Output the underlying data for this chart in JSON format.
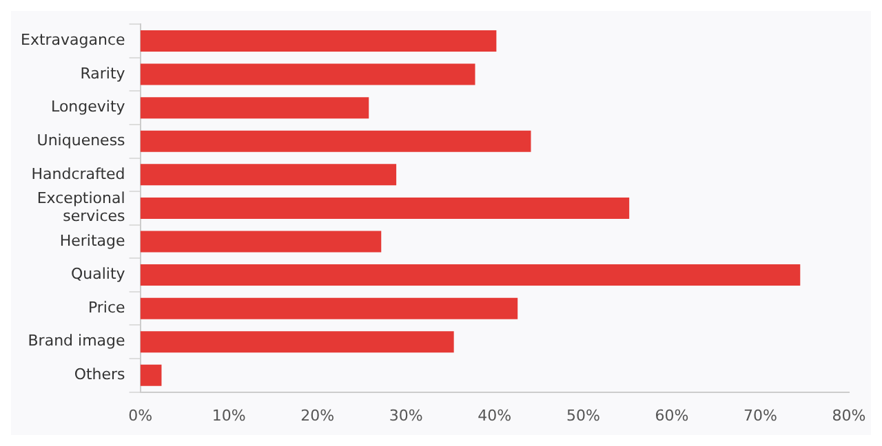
{
  "chart_data": {
    "type": "bar",
    "orientation": "horizontal",
    "categories": [
      "Extravagance",
      "Rarity",
      "Longevity",
      "Uniqueness",
      "Handcrafted",
      "Exceptional services",
      "Heritage",
      "Quality",
      "Price",
      "Brand image",
      "Others"
    ],
    "values": [
      40.2,
      37.8,
      25.8,
      44.1,
      28.9,
      55.2,
      27.2,
      74.5,
      42.6,
      35.4,
      2.4
    ],
    "color": "#e53935",
    "xlim": [
      0,
      80
    ],
    "xticks": [
      {
        "value": 0,
        "label": "0%"
      },
      {
        "value": 10,
        "label": "10%"
      },
      {
        "value": 20,
        "label": "20%"
      },
      {
        "value": 30,
        "label": "30%"
      },
      {
        "value": 40,
        "label": "40%"
      },
      {
        "value": 50,
        "label": "50%"
      },
      {
        "value": 60,
        "label": "60%"
      },
      {
        "value": 70,
        "label": "70%"
      },
      {
        "value": 80,
        "label": "80%"
      }
    ],
    "grid": false,
    "legend": false
  }
}
